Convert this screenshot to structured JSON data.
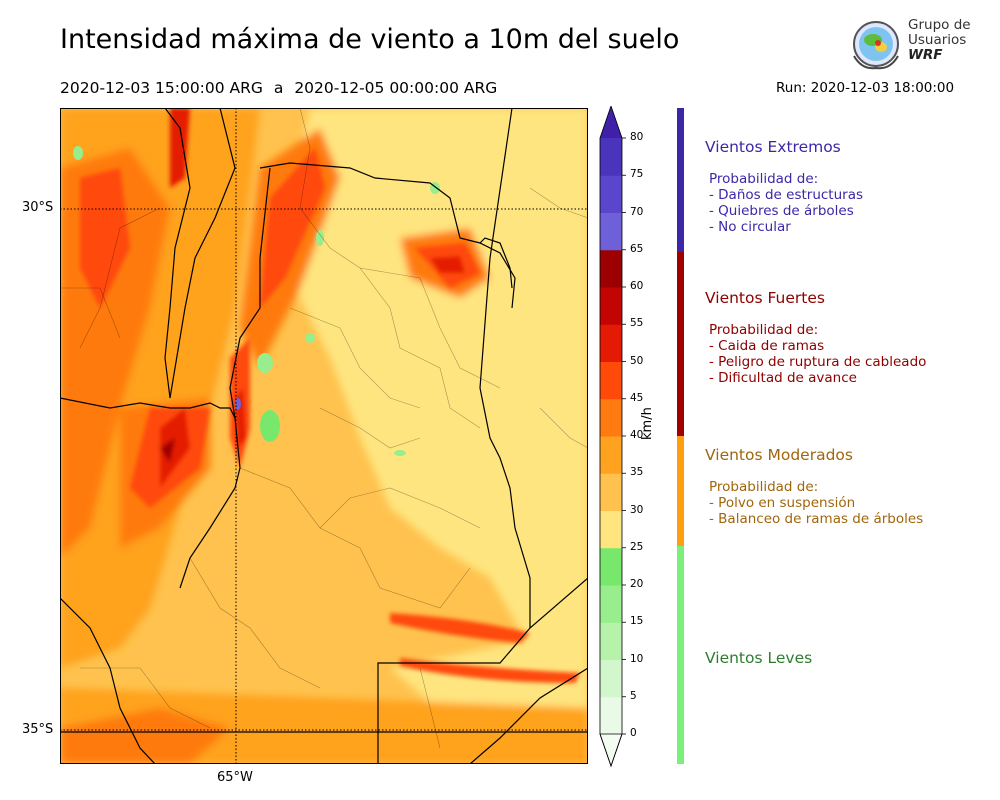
{
  "title": "Intensidad máxima de viento a 10m del suelo",
  "period": {
    "start": "2020-12-03 15:00:00 ARG",
    "separator": "a",
    "end": "2020-12-05 00:00:00 ARG"
  },
  "run": "Run: 2020-12-03 18:00:00",
  "logo": {
    "line1": "Grupo de",
    "line2": "Usuarios",
    "brand": "WRF"
  },
  "map": {
    "lat_labels": [
      "30°S",
      "35°S"
    ],
    "lon_labels": [
      "65°W"
    ],
    "gridlines": "dotted"
  },
  "colorbar": {
    "unit": "km/h",
    "ticks": [
      "0",
      "5",
      "10",
      "15",
      "20",
      "25",
      "30",
      "35",
      "40",
      "45",
      "50",
      "55",
      "60",
      "65",
      "70",
      "75",
      "80"
    ],
    "colors": [
      "#e9fbe6",
      "#d3f7cc",
      "#b6f2aa",
      "#98ed8c",
      "#78e86c",
      "#ffe57f",
      "#ffc24e",
      "#ffa21f",
      "#ff7a10",
      "#ff4a0a",
      "#e41a05",
      "#c20402",
      "#9c0000",
      "#6e60d8",
      "#5a46cc",
      "#4a34bb"
    ]
  },
  "legend": [
    {
      "title": "Vientos Extremos",
      "color": "#3b28a8",
      "bar_color": "#3b28a8",
      "lines": [
        "Probabilidad de:",
        "- Daños de estructuras",
        "- Quiebres de árboles",
        "- No circular"
      ]
    },
    {
      "title": "Vientos Fuertes",
      "color": "#8e0000",
      "bar_color": "#a00000",
      "lines": [
        "Probabilidad de:",
        "- Caida de ramas",
        "- Peligro de ruptura de cableado",
        "- Dificultad de avance"
      ]
    },
    {
      "title": "Vientos Moderados",
      "color": "#a0660b",
      "bar_color": "#ff9f10",
      "lines": [
        "Probabilidad de:",
        "- Polvo en suspensión",
        "- Balanceo de ramas de árboles"
      ]
    },
    {
      "title": "Vientos Leves",
      "color": "#2e7d2e",
      "bar_color": "#7af07a",
      "lines": []
    }
  ]
}
